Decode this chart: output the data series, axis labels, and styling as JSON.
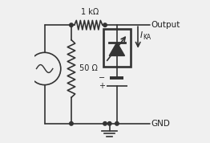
{
  "bg_color": "#f0f0f0",
  "line_color": "#333333",
  "text_color": "#222222",
  "fig_w": 2.62,
  "fig_h": 1.78,
  "dpi": 100,
  "output_label": "Output",
  "gnd_label": "GND",
  "res1k_label": "1 kΩ",
  "res50_label": "50 Ω",
  "ika_label": "I",
  "ika_sub": "KA",
  "bat_minus": "−",
  "bat_plus": "+"
}
